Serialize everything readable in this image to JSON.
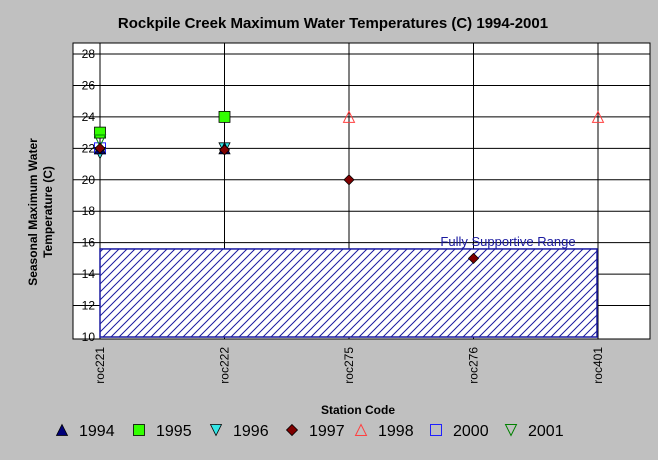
{
  "chart_data": {
    "type": "scatter",
    "title": "Rockpile Creek Maximum Water Temperatures (C) 1994-2001",
    "xlabel": "Station Code",
    "ylabel_lines": [
      "Seasonal Maximum Water",
      "Temperature  (C)"
    ],
    "categories": [
      "roc221",
      "roc222",
      "roc275",
      "roc276",
      "roc401"
    ],
    "ylim": [
      10,
      28
    ],
    "yticks": [
      10,
      12,
      14,
      16,
      18,
      20,
      22,
      24,
      26,
      28
    ],
    "grid": true,
    "legend_position": "bottom",
    "band": {
      "label": "Fully Supportive Range",
      "from": 10,
      "to": 15.6,
      "color": "#1a1aa0"
    },
    "series": [
      {
        "name": "1994",
        "marker": "triangle-up",
        "color": "#00007a",
        "filled": true,
        "points": [
          {
            "x": "roc221",
            "y": 22
          },
          {
            "x": "roc222",
            "y": 22
          }
        ]
      },
      {
        "name": "1995",
        "marker": "square",
        "color": "#33ff00",
        "filled": true,
        "points": [
          {
            "x": "roc221",
            "y": 23
          },
          {
            "x": "roc222",
            "y": 24
          }
        ]
      },
      {
        "name": "1996",
        "marker": "triangle-down",
        "color": "#33e6e6",
        "filled": true,
        "points": [
          {
            "x": "roc221",
            "y": 21.7
          },
          {
            "x": "roc222",
            "y": 22
          }
        ]
      },
      {
        "name": "1997",
        "marker": "diamond",
        "color": "#800000",
        "filled": true,
        "points": [
          {
            "x": "roc221",
            "y": 22
          },
          {
            "x": "roc222",
            "y": 21.9
          },
          {
            "x": "roc275",
            "y": 20
          },
          {
            "x": "roc276",
            "y": 15
          }
        ]
      },
      {
        "name": "1998",
        "marker": "triangle-up",
        "color": "#ff4040",
        "filled": false,
        "points": [
          {
            "x": "roc275",
            "y": 24
          },
          {
            "x": "roc401",
            "y": 24
          }
        ]
      },
      {
        "name": "2000",
        "marker": "square",
        "color": "#2020ff",
        "filled": false,
        "points": [
          {
            "x": "roc221",
            "y": 22
          }
        ]
      },
      {
        "name": "2001",
        "marker": "triangle-down",
        "color": "#008000",
        "filled": false,
        "points": [
          {
            "x": "roc221",
            "y": 22.5
          }
        ]
      }
    ]
  }
}
